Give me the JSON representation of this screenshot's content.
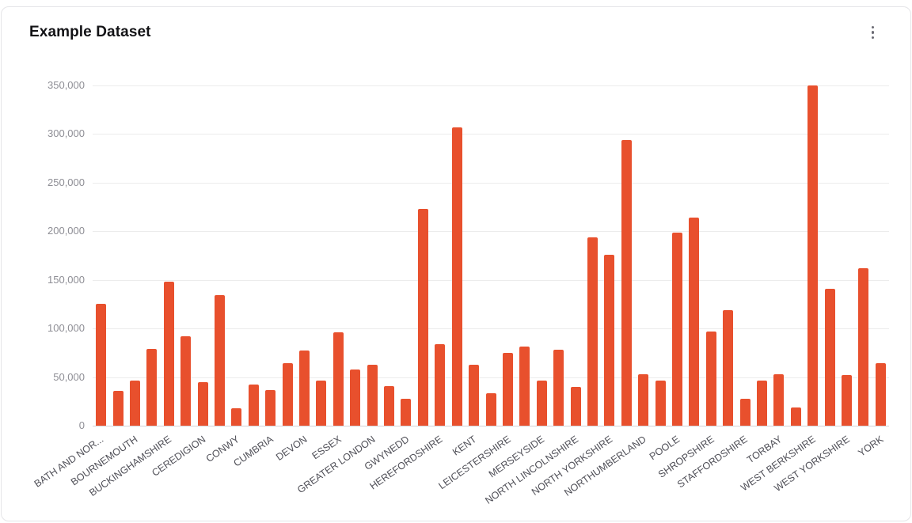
{
  "card": {
    "title": "Example Dataset",
    "menu_tooltip": "More options"
  },
  "colors": {
    "bar": "#e8502d",
    "gridline": "#ececec",
    "axis_line": "#d2d2d6",
    "y_tick_text": "#8e8e95",
    "x_label_text": "#4f4f57",
    "title_text": "#131316",
    "card_border": "#e5e5e8",
    "background": "#ffffff"
  },
  "chart_data": {
    "type": "bar",
    "title": "Example Dataset",
    "xlabel": "",
    "ylabel": "",
    "ylim": [
      0,
      350000
    ],
    "y_tick_interval": 50000,
    "y_tick_labels": [
      "0",
      "50,000",
      "100,000",
      "150,000",
      "200,000",
      "250,000",
      "300,000",
      "350,000"
    ],
    "grid": true,
    "legend": false,
    "x_label_rotation_deg": -35,
    "note": "47 bars; x-axis shows a label under every other bar only",
    "categories": [
      "BATH AND NOR...",
      "",
      "BOURNEMOUTH",
      "",
      "BUCKINGHAMSHIRE",
      "",
      "CEREDIGION",
      "",
      "CONWY",
      "",
      "CUMBRIA",
      "",
      "DEVON",
      "",
      "ESSEX",
      "",
      "GREATER LONDON",
      "",
      "GWYNEDD",
      "",
      "HEREFORDSHIRE",
      "",
      "KENT",
      "",
      "LEICESTERSHIRE",
      "",
      "MERSEYSIDE",
      "",
      "NORTH LINCOLNSHIRE",
      "",
      "NORTH YORKSHIRE",
      "",
      "NORTHUMBERLAND",
      "",
      "POOLE",
      "",
      "SHROPSHIRE",
      "",
      "STAFFORDSHIRE",
      "",
      "TORBAY",
      "",
      "WEST BERKSHIRE",
      "",
      "WEST YORKSHIRE",
      "",
      "YORK"
    ],
    "values": [
      125000,
      36000,
      46000,
      79000,
      148000,
      92000,
      45000,
      134000,
      18000,
      42000,
      37000,
      64000,
      77000,
      46000,
      96000,
      58000,
      63000,
      41000,
      28000,
      223000,
      84000,
      307000,
      63000,
      33000,
      75000,
      81000,
      46000,
      78000,
      40000,
      194000,
      176000,
      294000,
      53000,
      46000,
      199000,
      214000,
      97000,
      119000,
      28000,
      46000,
      53000,
      19000,
      350000,
      141000,
      52000,
      162000,
      64000
    ]
  }
}
